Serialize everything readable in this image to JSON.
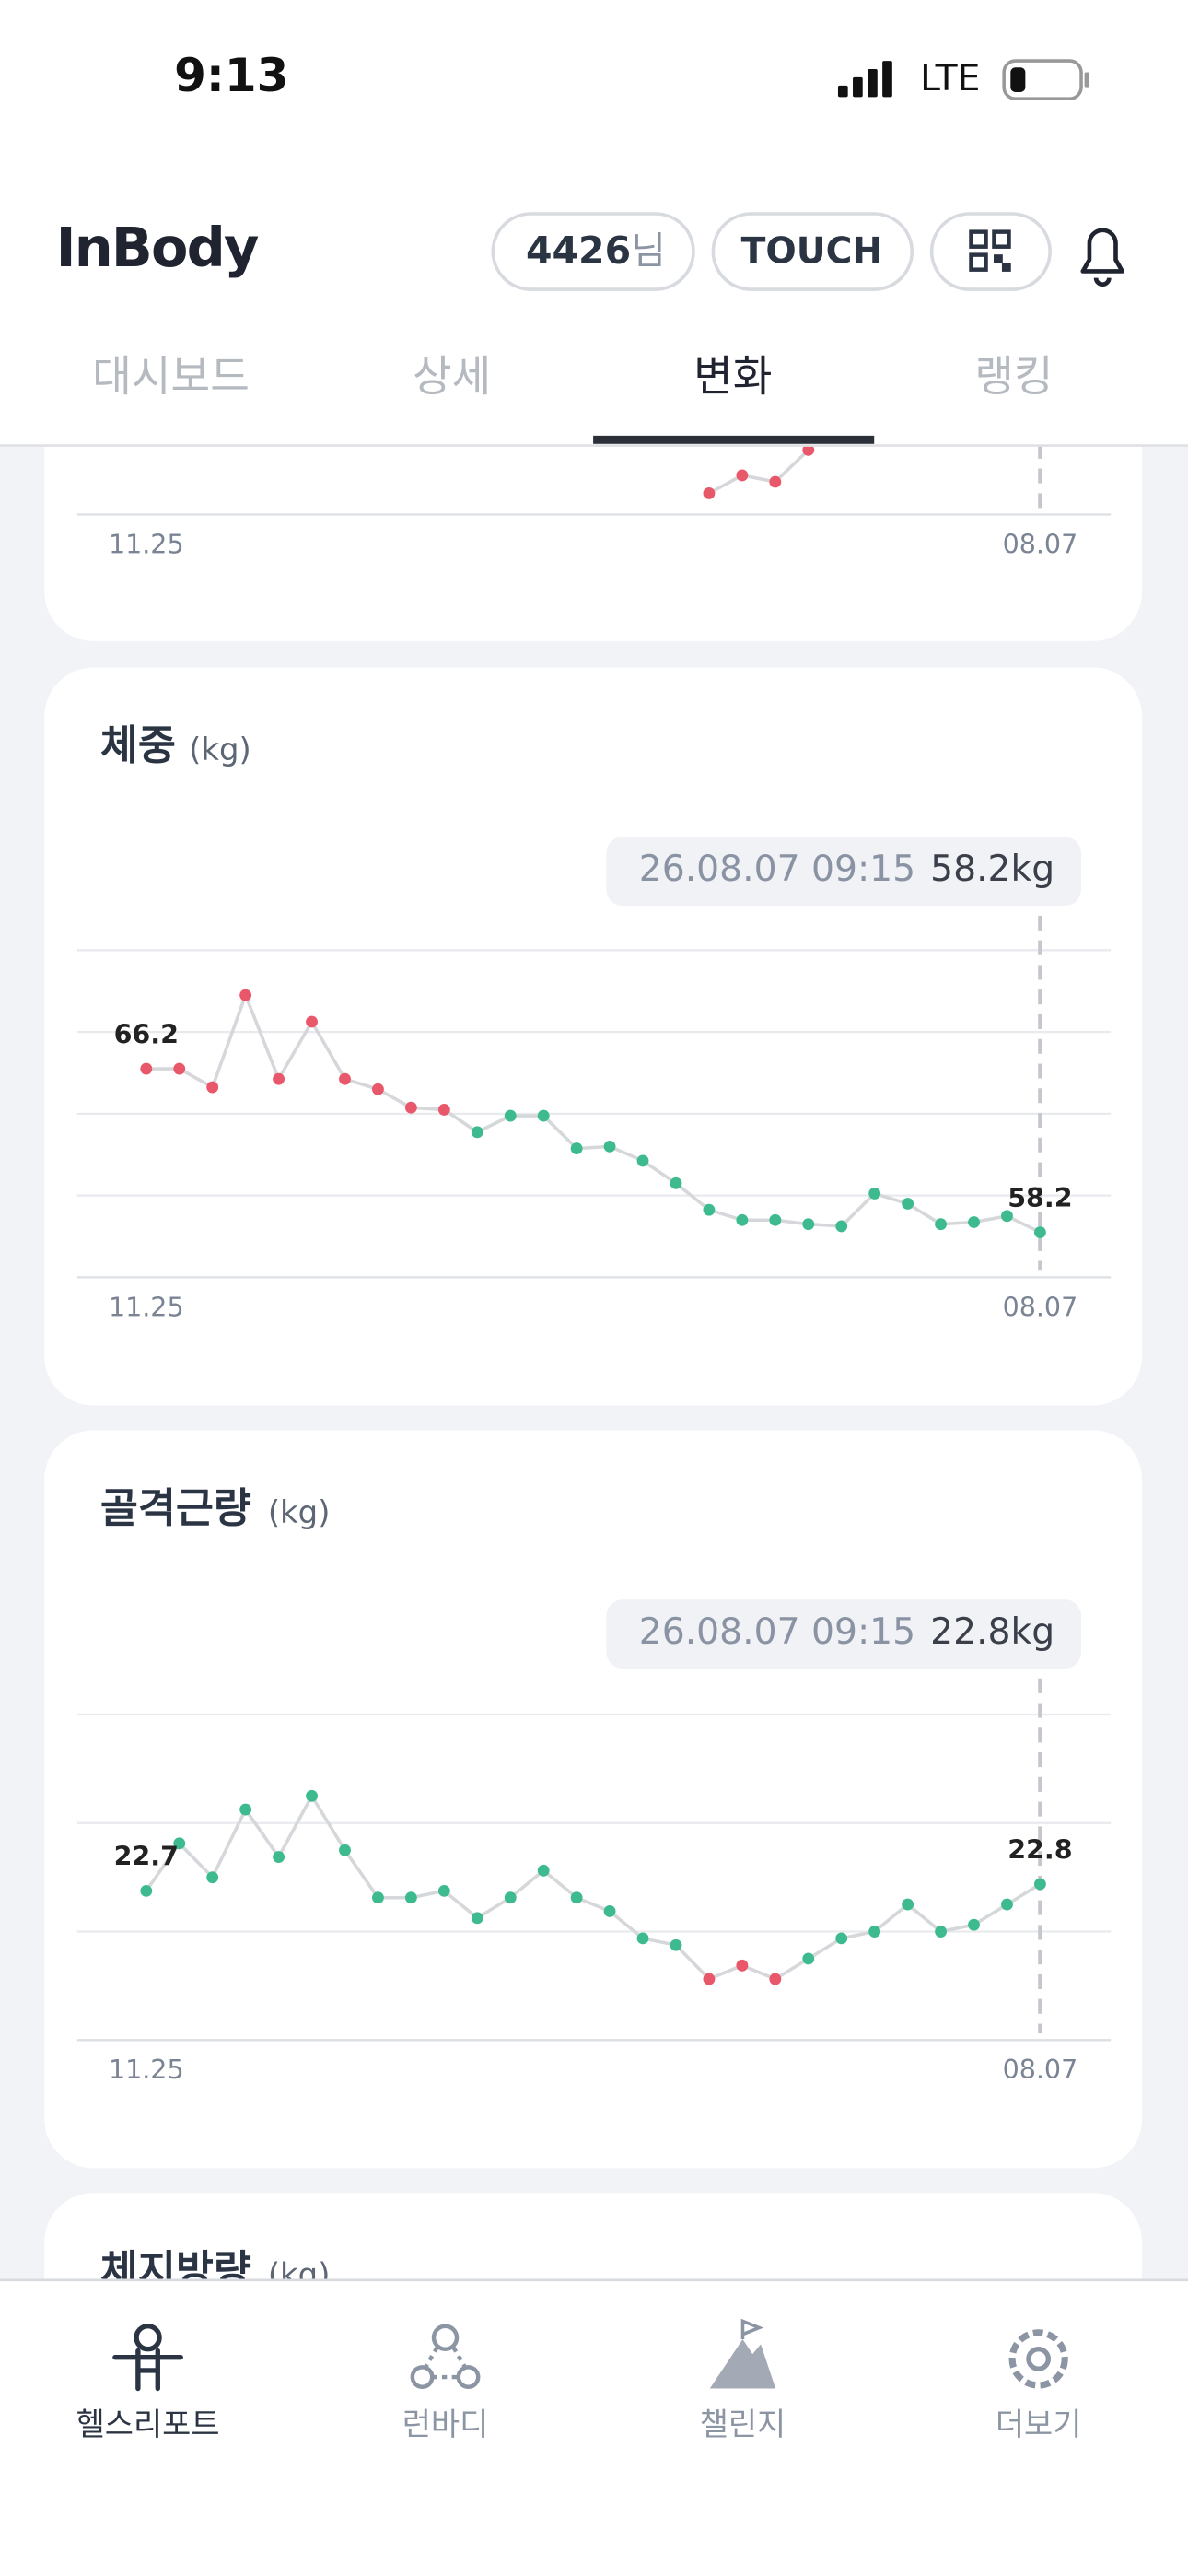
{
  "status_bar": {
    "time": "9:13",
    "network": "LTE"
  },
  "header": {
    "logo": "InBody",
    "user_id": "4426",
    "user_suffix": "님",
    "touch_button": "TOUCH"
  },
  "tabs": [
    "대시보드",
    "상세",
    "변화",
    "랭킹"
  ],
  "active_tab": 2,
  "chart_data": [
    {
      "type": "line",
      "categories": [
        "11.25",
        null,
        null,
        null,
        null,
        null,
        null,
        null,
        null,
        null,
        null,
        null,
        null,
        null,
        null,
        null,
        null,
        null,
        null,
        null,
        null,
        null,
        null,
        null,
        null,
        null,
        null,
        "08.07"
      ],
      "values": [
        null,
        null,
        null,
        null,
        null,
        null,
        null,
        null,
        null,
        null,
        null,
        null,
        null,
        null,
        null,
        null,
        null,
        10.26,
        10.48,
        10.4,
        10.79,
        null,
        null,
        null,
        null,
        null,
        null,
        null
      ],
      "point_colors": [
        "#e8576a",
        "#e8576a",
        "#e8576a",
        "#e8576a",
        "#e8576a",
        "#e8576a",
        "#e8576a",
        "#e8576a",
        "#e8576a",
        "#e8576a",
        "#e8576a",
        "#e8576a",
        "#e8576a",
        "#e8576a",
        "#e8576a",
        "#e8576a",
        "#e8576a",
        "#e8576a",
        "#e8576a",
        "#e8576a",
        "#e8576a",
        "#3dbb8f",
        "#3dbb8f",
        "#3dbb8f",
        "#3dbb8f",
        "#3dbb8f",
        "#3dbb8f",
        "#3dbb8f"
      ],
      "line_color": "#d5d7db",
      "ylim": [
        10,
        14
      ],
      "yticks": [
        10,
        11,
        12,
        13,
        14
      ],
      "grid": true,
      "labeled_points": []
    },
    {
      "type": "line",
      "title": "체중",
      "unit": "(kg)",
      "tooltip": {
        "date": "26.08.07 09:15",
        "value": "58.2kg"
      },
      "categories": [
        "11.25",
        null,
        null,
        null,
        null,
        null,
        null,
        null,
        null,
        null,
        null,
        null,
        null,
        null,
        null,
        null,
        null,
        null,
        null,
        null,
        null,
        null,
        null,
        null,
        null,
        null,
        null,
        "08.07"
      ],
      "values": [
        66.2,
        66.2,
        65.3,
        69.8,
        65.7,
        68.5,
        65.7,
        65.2,
        64.3,
        64.2,
        63.1,
        63.9,
        63.9,
        62.3,
        62.4,
        61.7,
        60.6,
        59.3,
        58.8,
        58.8,
        58.6,
        58.5,
        60.1,
        59.6,
        58.6,
        58.7,
        59.0,
        58.2
      ],
      "point_colors": [
        "#e8576a",
        "#e8576a",
        "#e8576a",
        "#e8576a",
        "#e8576a",
        "#e8576a",
        "#e8576a",
        "#e8576a",
        "#e8576a",
        "#e8576a",
        "#3dbb8f",
        "#3dbb8f",
        "#3dbb8f",
        "#3dbb8f",
        "#3dbb8f",
        "#3dbb8f",
        "#3dbb8f",
        "#3dbb8f",
        "#3dbb8f",
        "#3dbb8f",
        "#3dbb8f",
        "#3dbb8f",
        "#3dbb8f",
        "#3dbb8f",
        "#3dbb8f",
        "#3dbb8f",
        "#3dbb8f",
        "#3dbb8f"
      ],
      "line_color": "#d5d7db",
      "ylim": [
        56,
        72
      ],
      "yticks": [
        56,
        60,
        64,
        68,
        72
      ],
      "grid": true,
      "labeled_points": [
        0,
        27
      ]
    },
    {
      "type": "line",
      "title": "골격근량",
      "unit": "(kg)",
      "tooltip": {
        "date": "26.08.07 09:15",
        "value": "22.8kg"
      },
      "categories": [
        "11.25",
        null,
        null,
        null,
        null,
        null,
        null,
        null,
        null,
        null,
        null,
        null,
        null,
        null,
        null,
        null,
        null,
        null,
        null,
        null,
        null,
        null,
        null,
        null,
        null,
        null,
        null,
        "08.07"
      ],
      "values": [
        22.7,
        23.4,
        22.9,
        23.9,
        23.2,
        24.1,
        23.3,
        22.6,
        22.6,
        22.7,
        22.3,
        22.6,
        23.0,
        22.6,
        22.4,
        22.0,
        21.9,
        21.4,
        21.6,
        21.4,
        21.7,
        22.0,
        22.1,
        22.5,
        22.1,
        22.2,
        22.5,
        22.8
      ],
      "point_colors": [
        "#3dbb8f",
        "#3dbb8f",
        "#3dbb8f",
        "#3dbb8f",
        "#3dbb8f",
        "#3dbb8f",
        "#3dbb8f",
        "#3dbb8f",
        "#3dbb8f",
        "#3dbb8f",
        "#3dbb8f",
        "#3dbb8f",
        "#3dbb8f",
        "#3dbb8f",
        "#3dbb8f",
        "#3dbb8f",
        "#3dbb8f",
        "#e8576a",
        "#e8576a",
        "#e8576a",
        "#3dbb8f",
        "#3dbb8f",
        "#3dbb8f",
        "#3dbb8f",
        "#3dbb8f",
        "#3dbb8f",
        "#3dbb8f",
        "#3dbb8f"
      ],
      "line_color": "#d5d7db",
      "ylim": [
        20.5,
        25.3
      ],
      "yticks": [
        20.5,
        22.1,
        23.7,
        25.3
      ],
      "grid": true,
      "labeled_points": [
        0,
        27
      ]
    }
  ],
  "next_card": {
    "title": "체지방량",
    "unit": "(kg)"
  },
  "bottom_nav": [
    "헬스리포트",
    "런바디",
    "챌린지",
    "더보기"
  ],
  "active_nav": 0
}
